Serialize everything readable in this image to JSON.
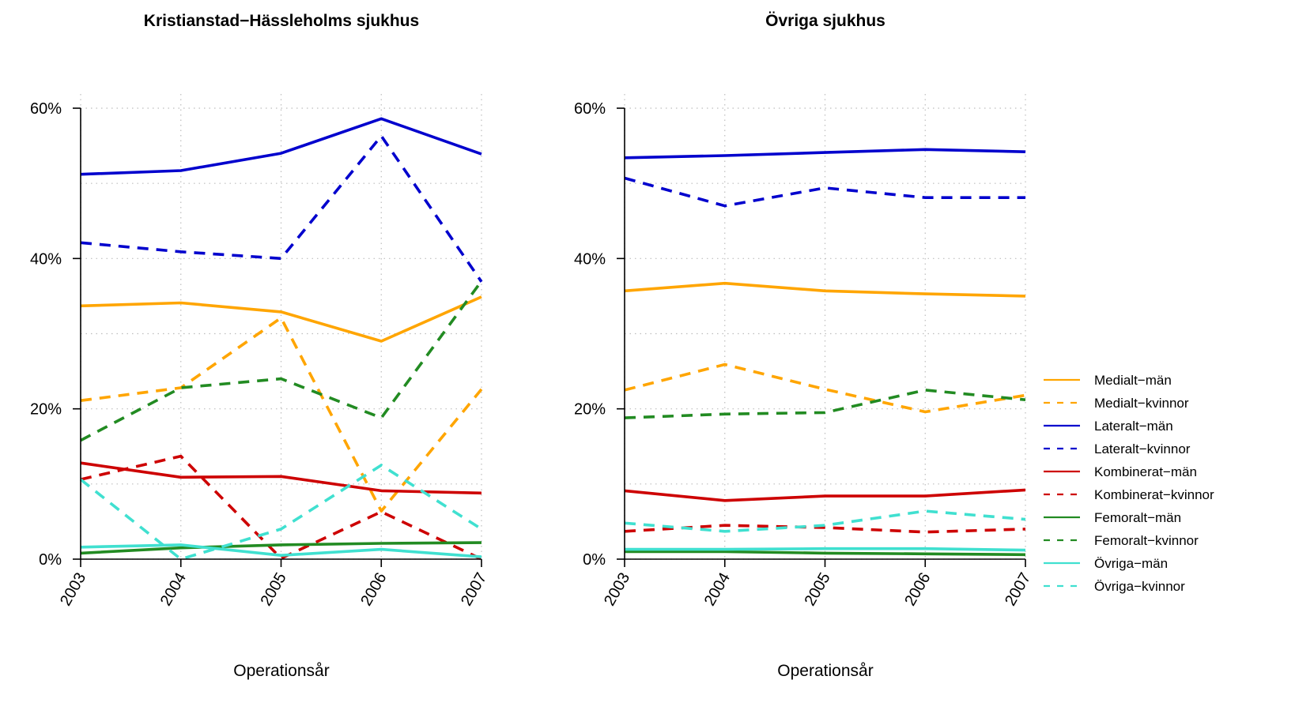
{
  "chart_data": [
    {
      "type": "line",
      "title": "Kristianstad−Hässleholms sjukhus",
      "xlabel": "Operationsår",
      "ylabel": "",
      "x": [
        "2003",
        "2004",
        "2005",
        "2006",
        "2007"
      ],
      "ylim": [
        0,
        60
      ],
      "yticks": [
        "0%",
        "20%",
        "40%",
        "60%"
      ],
      "grid": true,
      "series": [
        {
          "name": "Medialt−män",
          "color": "#FFA500",
          "dash": false,
          "values": [
            33.7,
            34.1,
            32.9,
            29.0,
            34.9
          ]
        },
        {
          "name": "Medialt−kvinnor",
          "color": "#FFA500",
          "dash": true,
          "values": [
            21.1,
            22.8,
            32.1,
            6.4,
            22.6
          ]
        },
        {
          "name": "Lateralt−män",
          "color": "#0000CD",
          "dash": false,
          "values": [
            51.2,
            51.7,
            54.0,
            58.6,
            53.9
          ]
        },
        {
          "name": "Lateralt−kvinnor",
          "color": "#0000CD",
          "dash": true,
          "values": [
            42.1,
            40.9,
            40.0,
            56.3,
            36.9
          ]
        },
        {
          "name": "Kombinerat−män",
          "color": "#CD0000",
          "dash": false,
          "values": [
            12.8,
            10.9,
            11.0,
            9.1,
            8.8
          ]
        },
        {
          "name": "Kombinerat−kvinnor",
          "color": "#CD0000",
          "dash": true,
          "values": [
            10.6,
            13.7,
            0.1,
            6.3,
            0.0
          ]
        },
        {
          "name": "Femoralt−män",
          "color": "#228B22",
          "dash": false,
          "values": [
            0.8,
            1.5,
            1.9,
            2.1,
            2.2
          ]
        },
        {
          "name": "Femoralt−kvinnor",
          "color": "#228B22",
          "dash": true,
          "values": [
            15.8,
            22.8,
            24.0,
            18.8,
            37.0
          ]
        },
        {
          "name": "Övriga−män",
          "color": "#40E0D0",
          "dash": false,
          "values": [
            1.6,
            1.9,
            0.5,
            1.3,
            0.3
          ]
        },
        {
          "name": "Övriga−kvinnor",
          "color": "#40E0D0",
          "dash": true,
          "values": [
            10.6,
            0.0,
            4.0,
            12.5,
            4.0
          ]
        }
      ]
    },
    {
      "type": "line",
      "title": "Övriga sjukhus",
      "xlabel": "Operationsår",
      "ylabel": "",
      "x": [
        "2003",
        "2004",
        "2005",
        "2006",
        "2007"
      ],
      "ylim": [
        0,
        60
      ],
      "yticks": [
        "0%",
        "20%",
        "40%",
        "60%"
      ],
      "grid": true,
      "legend": "right",
      "series": [
        {
          "name": "Medialt−män",
          "color": "#FFA500",
          "dash": false,
          "values": [
            35.7,
            36.7,
            35.7,
            35.3,
            35.0
          ]
        },
        {
          "name": "Medialt−kvinnor",
          "color": "#FFA500",
          "dash": true,
          "values": [
            22.5,
            25.9,
            22.6,
            19.6,
            21.8
          ]
        },
        {
          "name": "Lateralt−män",
          "color": "#0000CD",
          "dash": false,
          "values": [
            53.4,
            53.7,
            54.1,
            54.5,
            54.2
          ]
        },
        {
          "name": "Lateralt−kvinnor",
          "color": "#0000CD",
          "dash": true,
          "values": [
            50.7,
            47.0,
            49.4,
            48.1,
            48.1
          ]
        },
        {
          "name": "Kombinerat−män",
          "color": "#CD0000",
          "dash": false,
          "values": [
            9.1,
            7.8,
            8.4,
            8.4,
            9.2
          ]
        },
        {
          "name": "Kombinerat−kvinnor",
          "color": "#CD0000",
          "dash": true,
          "values": [
            3.7,
            4.5,
            4.2,
            3.6,
            4.0
          ]
        },
        {
          "name": "Femoralt−män",
          "color": "#228B22",
          "dash": false,
          "values": [
            1.0,
            1.0,
            0.8,
            0.7,
            0.6
          ]
        },
        {
          "name": "Femoralt−kvinnor",
          "color": "#228B22",
          "dash": true,
          "values": [
            18.8,
            19.3,
            19.5,
            22.5,
            21.2
          ]
        },
        {
          "name": "Övriga−män",
          "color": "#40E0D0",
          "dash": false,
          "values": [
            1.3,
            1.3,
            1.4,
            1.4,
            1.2
          ]
        },
        {
          "name": "Övriga−kvinnor",
          "color": "#40E0D0",
          "dash": true,
          "values": [
            4.8,
            3.7,
            4.5,
            6.4,
            5.3
          ]
        }
      ]
    }
  ]
}
